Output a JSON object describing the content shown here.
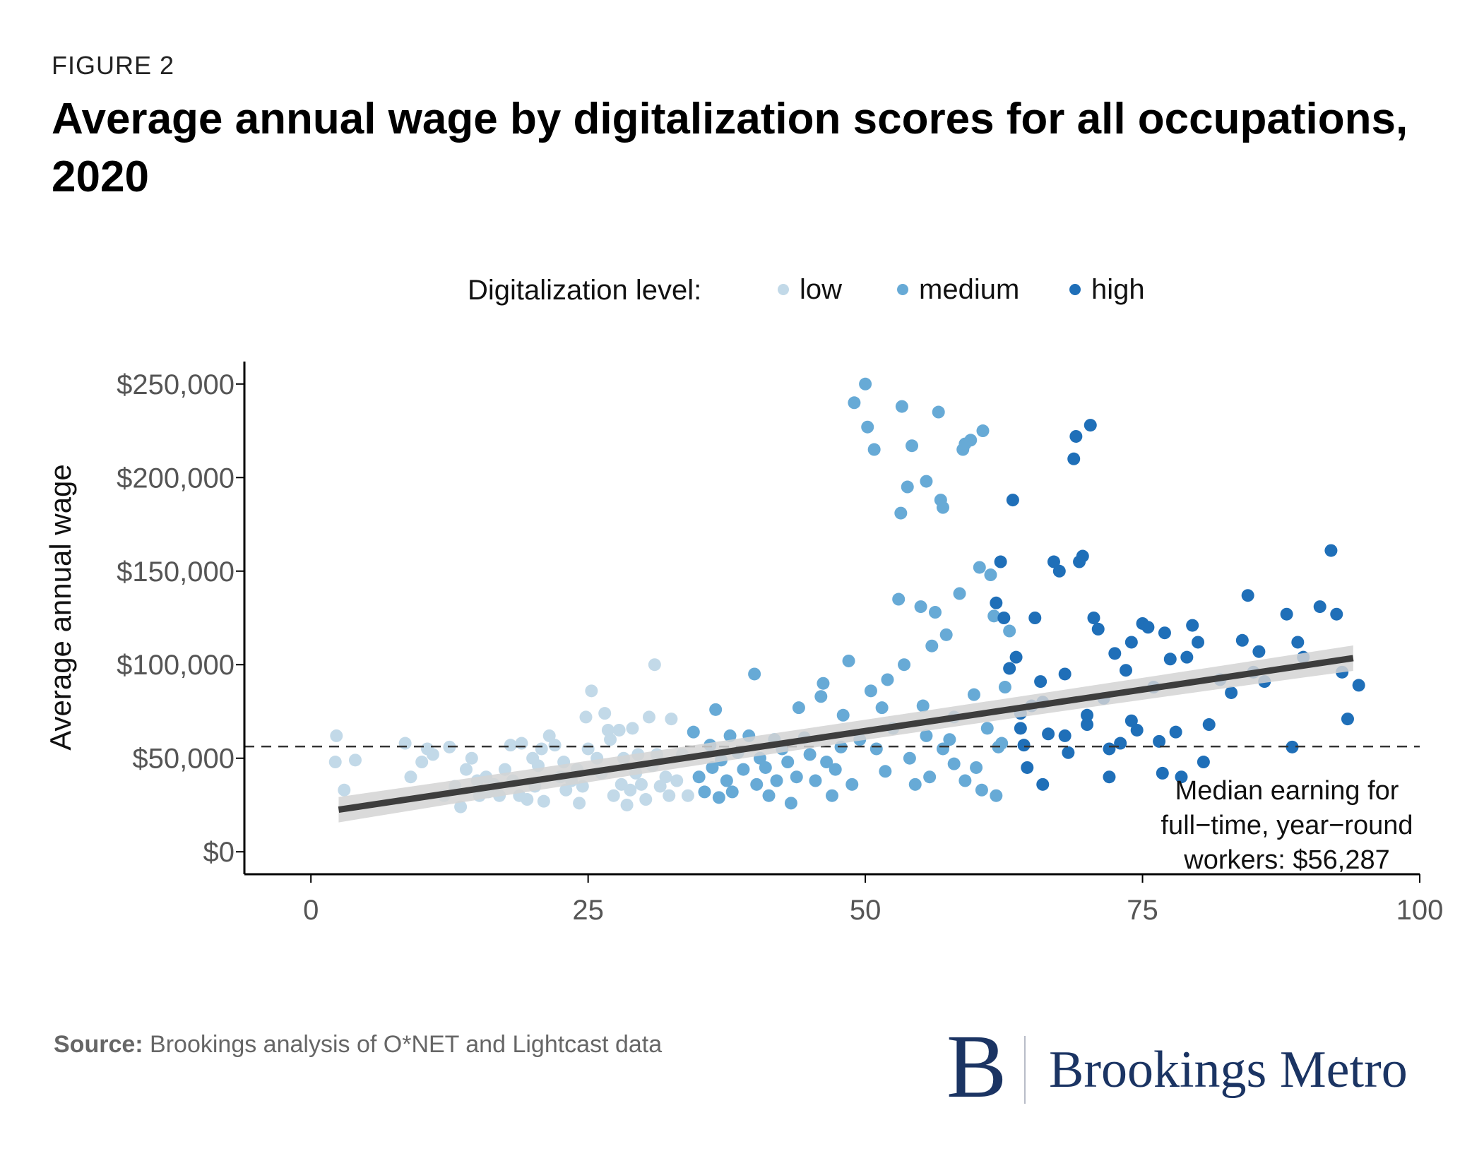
{
  "figure_label": "FIGURE 2",
  "title": "Average annual wage by digitalization scores for all occupations, 2020",
  "source_label": "Source:",
  "source_text": "Brookings analysis of O*NET and Lightcast data",
  "brand": {
    "letter": "B",
    "name": "Brookings Metro"
  },
  "colors": {
    "low": "#c2d9e8",
    "medium": "#67aad6",
    "high": "#1f6fb8",
    "trend": "#3d3d3d",
    "band": "#d3d3d3"
  },
  "chart_data": {
    "type": "scatter",
    "title": "Average annual wage by digitalization scores for all occupations, 2020",
    "xlabel": "",
    "ylabel": "Average annual wage",
    "xlim": [
      -6,
      100
    ],
    "ylim": [
      -12000,
      262000
    ],
    "x_ticks": [
      0,
      25,
      50,
      75,
      100
    ],
    "x_tick_labels": [
      "0",
      "25",
      "50",
      "75",
      "100"
    ],
    "y_ticks": [
      0,
      50000,
      100000,
      150000,
      200000,
      250000
    ],
    "y_tick_labels": [
      "$0",
      "$50,000",
      "$100,000",
      "$150,000",
      "$200,000",
      "$250,000"
    ],
    "legend": {
      "title": "Digitalization level:",
      "position": "top",
      "entries": [
        "low",
        "medium",
        "high"
      ]
    },
    "reference_line": {
      "y": 56287,
      "style": "dashed",
      "label_lines": [
        "Median earning for",
        "full−time, year−round",
        "workers: $56,287"
      ]
    },
    "trend_line": {
      "x": [
        2.5,
        94
      ],
      "y": [
        22500,
        103500
      ]
    },
    "series": [
      {
        "name": "low",
        "points": [
          [
            2.3,
            62000
          ],
          [
            2.2,
            48000
          ],
          [
            3,
            33000
          ],
          [
            4,
            49000
          ],
          [
            8.5,
            58000
          ],
          [
            9,
            40000
          ],
          [
            10,
            48000
          ],
          [
            10.5,
            55000
          ],
          [
            11,
            52000
          ],
          [
            12,
            30000
          ],
          [
            12.5,
            56000
          ],
          [
            13,
            35000
          ],
          [
            13.5,
            24000
          ],
          [
            14,
            44000
          ],
          [
            14.5,
            50000
          ],
          [
            15,
            38000
          ],
          [
            15.2,
            30000
          ],
          [
            15.8,
            40000
          ],
          [
            16,
            32000
          ],
          [
            16.5,
            36000
          ],
          [
            17,
            30000
          ],
          [
            17.5,
            44000
          ],
          [
            18,
            57000
          ],
          [
            18.2,
            38000
          ],
          [
            18.8,
            30000
          ],
          [
            19,
            58000
          ],
          [
            19.5,
            28000
          ],
          [
            20,
            50000
          ],
          [
            20.2,
            35000
          ],
          [
            20.5,
            46000
          ],
          [
            20.8,
            55000
          ],
          [
            21,
            27000
          ],
          [
            21.5,
            62000
          ],
          [
            22,
            57000
          ],
          [
            22.5,
            40000
          ],
          [
            22.8,
            48000
          ],
          [
            23,
            33000
          ],
          [
            23.5,
            38000
          ],
          [
            24,
            44000
          ],
          [
            24.2,
            26000
          ],
          [
            24.5,
            35000
          ],
          [
            24.8,
            72000
          ],
          [
            25,
            55000
          ],
          [
            25.3,
            86000
          ],
          [
            25.8,
            50000
          ],
          [
            26.2,
            42000
          ],
          [
            26.5,
            74000
          ],
          [
            26.8,
            65000
          ],
          [
            27,
            60000
          ],
          [
            27.3,
            30000
          ],
          [
            27.8,
            65000
          ],
          [
            28,
            36000
          ],
          [
            28.2,
            50000
          ],
          [
            28.5,
            25000
          ],
          [
            28.8,
            33000
          ],
          [
            29,
            66000
          ],
          [
            29.3,
            42000
          ],
          [
            29.5,
            52000
          ],
          [
            29.8,
            36000
          ],
          [
            30.2,
            28000
          ],
          [
            30.5,
            72000
          ],
          [
            30.8,
            46000
          ],
          [
            31,
            100000
          ],
          [
            31.2,
            52000
          ],
          [
            31.5,
            35000
          ],
          [
            32,
            40000
          ],
          [
            32.3,
            30000
          ],
          [
            32.5,
            71000
          ],
          [
            33,
            38000
          ],
          [
            33.5,
            52000
          ],
          [
            34,
            30000
          ]
        ]
      },
      {
        "name": "medium",
        "points": [
          [
            34.5,
            64000
          ],
          [
            35,
            40000
          ],
          [
            35.5,
            32000
          ],
          [
            36,
            57000
          ],
          [
            36.2,
            45000
          ],
          [
            36.5,
            76000
          ],
          [
            36.8,
            29000
          ],
          [
            37,
            49000
          ],
          [
            37.5,
            38000
          ],
          [
            37.8,
            62000
          ],
          [
            38,
            32000
          ],
          [
            38.5,
            53000
          ],
          [
            39,
            44000
          ],
          [
            39.5,
            62000
          ],
          [
            40,
            95000
          ],
          [
            40.2,
            36000
          ],
          [
            40.5,
            50000
          ],
          [
            41,
            45000
          ],
          [
            41.3,
            30000
          ],
          [
            41.8,
            60000
          ],
          [
            42,
            38000
          ],
          [
            42.5,
            55000
          ],
          [
            43,
            48000
          ],
          [
            43.3,
            26000
          ],
          [
            43.8,
            40000
          ],
          [
            44,
            77000
          ],
          [
            44.5,
            61000
          ],
          [
            45,
            52000
          ],
          [
            45.5,
            38000
          ],
          [
            46,
            83000
          ],
          [
            46.2,
            90000
          ],
          [
            46.5,
            48000
          ],
          [
            47,
            30000
          ],
          [
            47.3,
            44000
          ],
          [
            47.8,
            56000
          ],
          [
            48,
            73000
          ],
          [
            48.5,
            102000
          ],
          [
            48.8,
            36000
          ],
          [
            49,
            240000
          ],
          [
            49.5,
            60000
          ],
          [
            50,
            250000
          ],
          [
            50.2,
            227000
          ],
          [
            50.5,
            86000
          ],
          [
            50.8,
            215000
          ],
          [
            51,
            55000
          ],
          [
            51.5,
            77000
          ],
          [
            51.8,
            43000
          ],
          [
            52,
            92000
          ],
          [
            52.5,
            66000
          ],
          [
            53,
            135000
          ],
          [
            53.2,
            181000
          ],
          [
            53.3,
            238000
          ],
          [
            53.5,
            100000
          ],
          [
            53.8,
            195000
          ],
          [
            54,
            50000
          ],
          [
            54.2,
            217000
          ],
          [
            54.5,
            36000
          ],
          [
            55,
            131000
          ],
          [
            55.2,
            78000
          ],
          [
            55.5,
            198000
          ],
          [
            55.8,
            40000
          ],
          [
            56,
            110000
          ],
          [
            56.3,
            128000
          ],
          [
            56.6,
            235000
          ],
          [
            56.8,
            188000
          ],
          [
            57,
            184000
          ],
          [
            57.3,
            116000
          ],
          [
            57.6,
            60000
          ],
          [
            58,
            72000
          ],
          [
            58.5,
            138000
          ],
          [
            58.8,
            215000
          ],
          [
            59,
            218000
          ],
          [
            59.5,
            220000
          ],
          [
            59.8,
            84000
          ],
          [
            60,
            45000
          ],
          [
            60.3,
            152000
          ],
          [
            60.6,
            225000
          ],
          [
            61,
            66000
          ],
          [
            61.3,
            148000
          ],
          [
            61.6,
            126000
          ],
          [
            61.8,
            30000
          ],
          [
            62,
            56000
          ],
          [
            62.3,
            58000
          ],
          [
            62.6,
            88000
          ],
          [
            63,
            118000
          ],
          [
            55.5,
            62000
          ],
          [
            57,
            55000
          ],
          [
            58,
            47000
          ],
          [
            59,
            38000
          ],
          [
            60.5,
            33000
          ]
        ]
      },
      {
        "name": "high",
        "points": [
          [
            61.8,
            133000
          ],
          [
            62.2,
            155000
          ],
          [
            62.5,
            125000
          ],
          [
            63,
            98000
          ],
          [
            63.3,
            188000
          ],
          [
            63.6,
            104000
          ],
          [
            64,
            66000
          ],
          [
            64.3,
            57000
          ],
          [
            64.6,
            45000
          ],
          [
            65,
            78000
          ],
          [
            65.3,
            125000
          ],
          [
            65.8,
            91000
          ],
          [
            66,
            36000
          ],
          [
            66.5,
            63000
          ],
          [
            67,
            155000
          ],
          [
            67.5,
            150000
          ],
          [
            68,
            95000
          ],
          [
            68.3,
            53000
          ],
          [
            68.8,
            210000
          ],
          [
            69,
            222000
          ],
          [
            69.3,
            155000
          ],
          [
            69.6,
            158000
          ],
          [
            70,
            68000
          ],
          [
            70.3,
            228000
          ],
          [
            70.6,
            125000
          ],
          [
            71,
            119000
          ],
          [
            71.5,
            82000
          ],
          [
            72,
            40000
          ],
          [
            72.5,
            106000
          ],
          [
            73,
            58000
          ],
          [
            73.5,
            97000
          ],
          [
            74,
            112000
          ],
          [
            74.5,
            65000
          ],
          [
            75,
            122000
          ],
          [
            75.5,
            120000
          ],
          [
            76,
            88000
          ],
          [
            76.5,
            59000
          ],
          [
            76.8,
            42000
          ],
          [
            77,
            117000
          ],
          [
            77.5,
            103000
          ],
          [
            78,
            64000
          ],
          [
            78.5,
            40000
          ],
          [
            79,
            104000
          ],
          [
            79.5,
            121000
          ],
          [
            80,
            112000
          ],
          [
            80.5,
            48000
          ],
          [
            81,
            68000
          ],
          [
            82,
            92000
          ],
          [
            83,
            85000
          ],
          [
            84,
            113000
          ],
          [
            84.5,
            137000
          ],
          [
            85,
            96000
          ],
          [
            85.5,
            107000
          ],
          [
            86,
            91000
          ],
          [
            88,
            127000
          ],
          [
            88.5,
            56000
          ],
          [
            89,
            112000
          ],
          [
            89.5,
            104000
          ],
          [
            91,
            131000
          ],
          [
            92,
            161000
          ],
          [
            92.5,
            127000
          ],
          [
            93,
            96000
          ],
          [
            93.5,
            71000
          ],
          [
            94.5,
            89000
          ],
          [
            64,
            74000
          ],
          [
            66,
            80000
          ],
          [
            68,
            62000
          ],
          [
            70,
            73000
          ],
          [
            72,
            55000
          ],
          [
            74,
            70000
          ]
        ]
      }
    ]
  }
}
